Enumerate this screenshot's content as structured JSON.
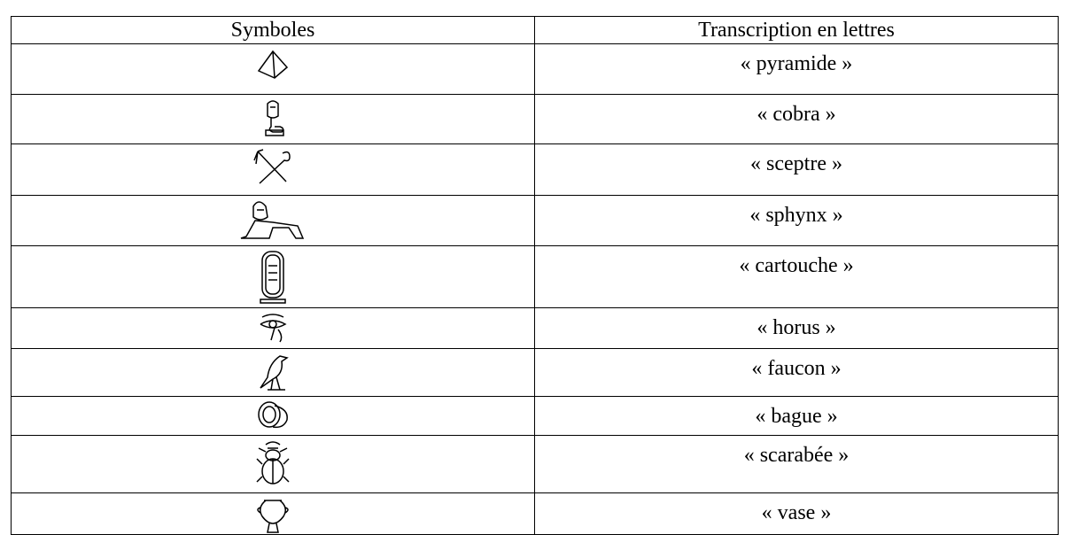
{
  "table": {
    "header": [
      "Symboles",
      "Transcription en lettres"
    ],
    "rows": [
      "« pyramide »",
      "« cobra »",
      "« sceptre »",
      "« sphynx »",
      "« cartouche »",
      "« horus »",
      "« faucon »",
      "« bague »",
      "« scarabée »",
      "« vase »"
    ]
  }
}
